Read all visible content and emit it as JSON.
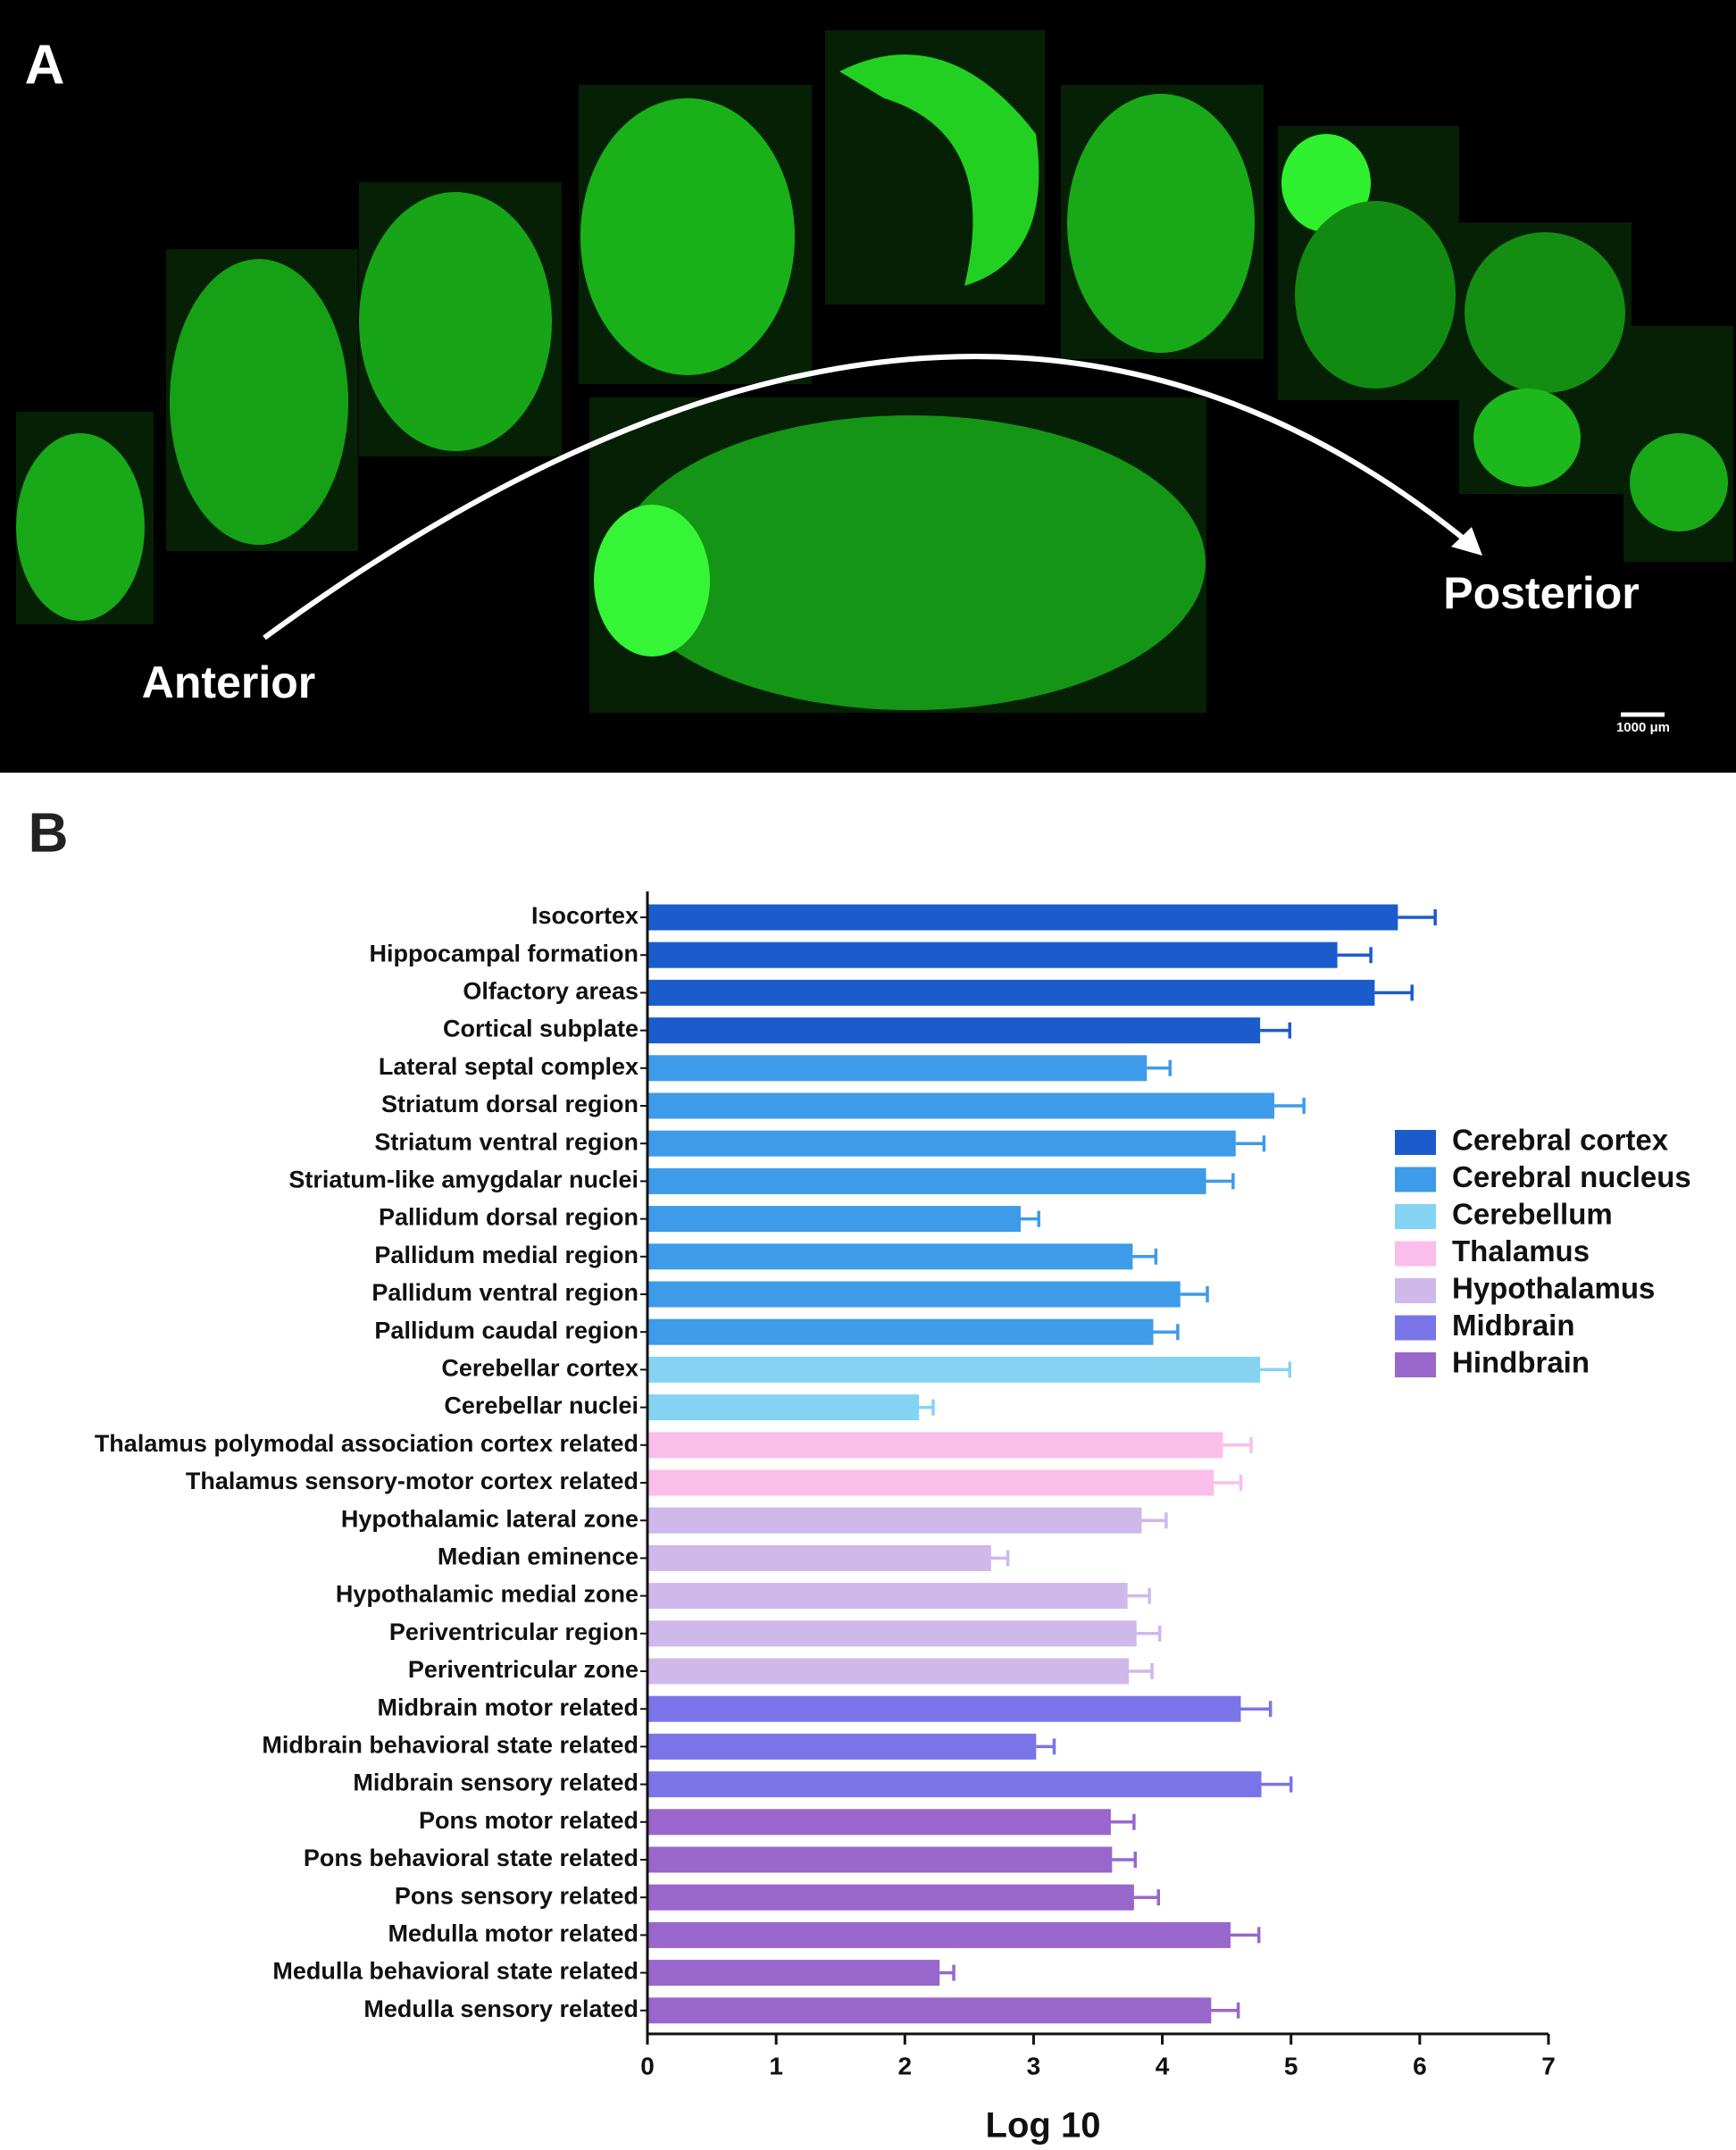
{
  "panel_a": {
    "label": "A",
    "annotations": [
      "Anterior",
      "Posterior"
    ],
    "scale_bar": "1000 μm"
  },
  "chart_data": {
    "type": "bar",
    "orientation": "horizontal",
    "panel_label": "B",
    "x_label": "Log 10",
    "categories": [
      "Isocortex",
      "Hippocampal formation",
      "Olfactory areas",
      "Cortical subplate",
      "Lateral septal complex",
      "Striatum dorsal region",
      "Striatum ventral region",
      "Striatum-like amygdalar nuclei",
      "Pallidum dorsal region",
      "Pallidum medial region",
      "Pallidum ventral region",
      "Pallidum caudal region",
      "Cerebellar cortex",
      "Cerebellar nuclei",
      "Thalamus polymodal association cortex related",
      "Thalamus sensory-motor cortex related",
      "Hypothalamic lateral zone",
      "Median eminence",
      "Hypothalamic medial zone",
      "Periventricular region",
      "Periventricular zone",
      "Midbrain motor related",
      "Midbrain behavioral state related",
      "Midbrain sensory related",
      "Pons motor related",
      "Pons behavioral state related",
      "Pons sensory related",
      "Medulla motor related",
      "Medulla behavioral state related",
      "Medulla sensory related"
    ],
    "series": [
      {
        "name": "Cerebral cortex",
        "color": "#1a5ccc",
        "values": [
          5.83,
          5.36,
          5.65,
          4.76,
          null,
          null,
          null,
          null,
          null,
          null,
          null,
          null,
          null,
          null,
          null,
          null,
          null,
          null,
          null,
          null,
          null,
          null,
          null,
          null,
          null,
          null,
          null,
          null,
          null,
          null
        ],
        "errors": [
          0.29,
          0.26,
          0.29,
          0.23,
          null,
          null,
          null,
          null,
          null,
          null,
          null,
          null,
          null,
          null,
          null,
          null,
          null,
          null,
          null,
          null,
          null,
          null,
          null,
          null,
          null,
          null,
          null,
          null,
          null,
          null
        ]
      },
      {
        "name": "Cerebral nucleus",
        "color": "#3d9be9",
        "values": [
          null,
          null,
          null,
          null,
          3.88,
          4.87,
          4.57,
          4.34,
          2.9,
          3.77,
          4.14,
          3.93,
          null,
          null,
          null,
          null,
          null,
          null,
          null,
          null,
          null,
          null,
          null,
          null,
          null,
          null,
          null,
          null,
          null,
          null
        ],
        "errors": [
          null,
          null,
          null,
          null,
          0.18,
          0.23,
          0.22,
          0.21,
          0.14,
          0.18,
          0.21,
          0.19,
          null,
          null,
          null,
          null,
          null,
          null,
          null,
          null,
          null,
          null,
          null,
          null,
          null,
          null,
          null,
          null,
          null,
          null
        ]
      },
      {
        "name": "Cerebellum",
        "color": "#85d3f2",
        "values": [
          null,
          null,
          null,
          null,
          null,
          null,
          null,
          null,
          null,
          null,
          null,
          null,
          4.76,
          2.11,
          null,
          null,
          null,
          null,
          null,
          null,
          null,
          null,
          null,
          null,
          null,
          null,
          null,
          null,
          null,
          null
        ],
        "errors": [
          null,
          null,
          null,
          null,
          null,
          null,
          null,
          null,
          null,
          null,
          null,
          null,
          0.23,
          0.11,
          null,
          null,
          null,
          null,
          null,
          null,
          null,
          null,
          null,
          null,
          null,
          null,
          null,
          null,
          null,
          null
        ]
      },
      {
        "name": "Thalamus",
        "color": "#fbbde9",
        "values": [
          null,
          null,
          null,
          null,
          null,
          null,
          null,
          null,
          null,
          null,
          null,
          null,
          null,
          null,
          4.47,
          4.4,
          null,
          null,
          null,
          null,
          null,
          null,
          null,
          null,
          null,
          null,
          null,
          null,
          null,
          null
        ],
        "errors": [
          null,
          null,
          null,
          null,
          null,
          null,
          null,
          null,
          null,
          null,
          null,
          null,
          null,
          null,
          0.22,
          0.21,
          null,
          null,
          null,
          null,
          null,
          null,
          null,
          null,
          null,
          null,
          null,
          null,
          null,
          null
        ]
      },
      {
        "name": "Hypothalamus",
        "color": "#cfb8ea",
        "values": [
          null,
          null,
          null,
          null,
          null,
          null,
          null,
          null,
          null,
          null,
          null,
          null,
          null,
          null,
          null,
          null,
          3.84,
          2.67,
          3.73,
          3.8,
          3.74,
          null,
          null,
          null,
          null,
          null,
          null,
          null,
          null,
          null
        ],
        "errors": [
          null,
          null,
          null,
          null,
          null,
          null,
          null,
          null,
          null,
          null,
          null,
          null,
          null,
          null,
          null,
          null,
          0.19,
          0.13,
          0.17,
          0.18,
          0.18,
          null,
          null,
          null,
          null,
          null,
          null,
          null,
          null,
          null
        ]
      },
      {
        "name": "Midbrain",
        "color": "#7b74e8",
        "values": [
          null,
          null,
          null,
          null,
          null,
          null,
          null,
          null,
          null,
          null,
          null,
          null,
          null,
          null,
          null,
          null,
          null,
          null,
          null,
          null,
          null,
          4.61,
          3.02,
          4.77,
          null,
          null,
          null,
          null,
          null,
          null
        ],
        "errors": [
          null,
          null,
          null,
          null,
          null,
          null,
          null,
          null,
          null,
          null,
          null,
          null,
          null,
          null,
          null,
          null,
          null,
          null,
          null,
          null,
          null,
          0.23,
          0.14,
          0.23,
          null,
          null,
          null,
          null,
          null,
          null
        ]
      },
      {
        "name": "Hindbrain",
        "color": "#9966cc",
        "values": [
          null,
          null,
          null,
          null,
          null,
          null,
          null,
          null,
          null,
          null,
          null,
          null,
          null,
          null,
          null,
          null,
          null,
          null,
          null,
          null,
          null,
          null,
          null,
          null,
          3.6,
          3.61,
          3.78,
          4.53,
          2.27,
          4.38
        ],
        "errors": [
          null,
          null,
          null,
          null,
          null,
          null,
          null,
          null,
          null,
          null,
          null,
          null,
          null,
          null,
          null,
          null,
          null,
          null,
          null,
          null,
          null,
          null,
          null,
          null,
          0.18,
          0.18,
          0.19,
          0.22,
          0.11,
          0.21
        ]
      }
    ],
    "xlim": [
      0,
      7
    ],
    "xticks": [
      0,
      1,
      2,
      3,
      4,
      5,
      6,
      7
    ],
    "grid": false,
    "legend": "right"
  }
}
